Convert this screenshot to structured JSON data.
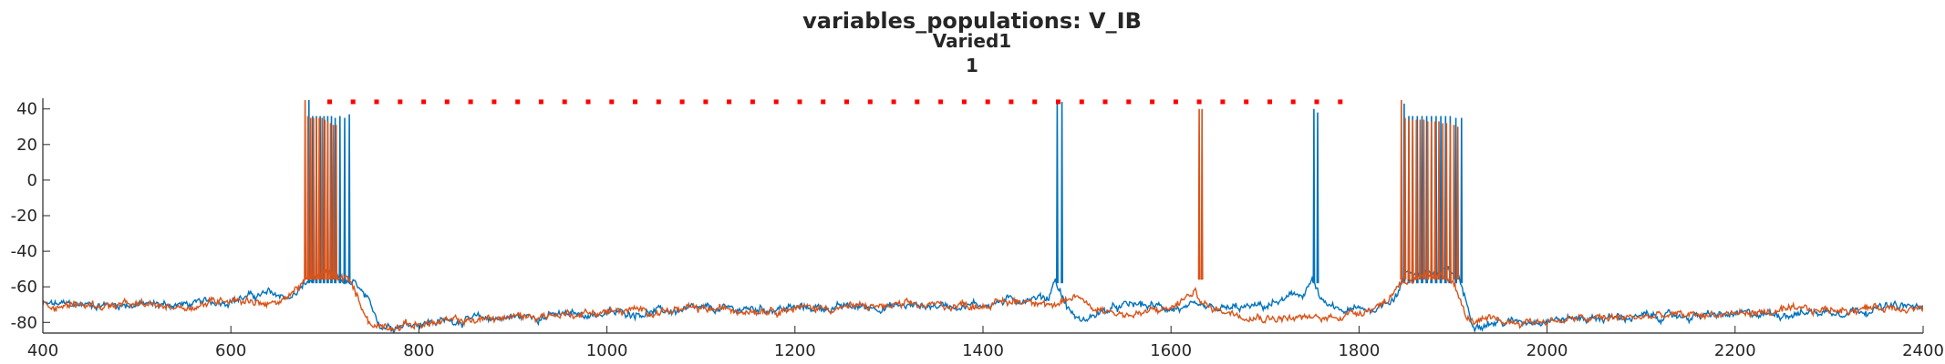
{
  "chart_data": {
    "type": "line",
    "title": "variables_populations: V_IB",
    "subtitle": "Varied1",
    "subtitle2": "1",
    "xlim": [
      400,
      2400
    ],
    "ylim": [
      -86,
      46
    ],
    "xticks": [
      400,
      600,
      800,
      1000,
      1200,
      1400,
      1600,
      1800,
      2000,
      2200,
      2400
    ],
    "yticks": [
      -80,
      -60,
      -40,
      -20,
      0,
      20,
      40
    ],
    "grid": false,
    "series": [
      {
        "color": "#0072BD",
        "baseline": [
          [
            400,
            -70
          ],
          [
            560,
            -70
          ],
          [
            600,
            -67
          ],
          [
            640,
            -64
          ],
          [
            665,
            -66
          ],
          [
            680,
            -58
          ],
          [
            700,
            -53
          ],
          [
            735,
            -60
          ],
          [
            760,
            -82
          ],
          [
            800,
            -80
          ],
          [
            900,
            -77
          ],
          [
            1000,
            -75
          ],
          [
            1100,
            -73
          ],
          [
            1200,
            -72
          ],
          [
            1300,
            -71
          ],
          [
            1400,
            -70
          ],
          [
            1450,
            -66
          ],
          [
            1470,
            -66
          ],
          [
            1476,
            -55
          ],
          [
            1490,
            -72
          ],
          [
            1505,
            -80
          ],
          [
            1520,
            -75
          ],
          [
            1560,
            -70
          ],
          [
            1600,
            -72
          ],
          [
            1650,
            -73
          ],
          [
            1700,
            -71
          ],
          [
            1740,
            -64
          ],
          [
            1750,
            -56
          ],
          [
            1762,
            -70
          ],
          [
            1780,
            -74
          ],
          [
            1820,
            -72
          ],
          [
            1840,
            -64
          ],
          [
            1850,
            -52
          ],
          [
            1905,
            -52
          ],
          [
            1920,
            -80
          ],
          [
            1960,
            -80
          ],
          [
            2000,
            -78
          ],
          [
            2100,
            -77
          ],
          [
            2200,
            -76
          ],
          [
            2300,
            -74
          ],
          [
            2380,
            -71
          ],
          [
            2400,
            -72
          ]
        ],
        "spikes": [
          [
            683,
            45
          ],
          [
            687,
            36
          ],
          [
            691,
            36
          ],
          [
            695,
            36
          ],
          [
            699,
            36
          ],
          [
            703,
            36
          ],
          [
            707,
            36
          ],
          [
            711,
            35
          ],
          [
            716,
            36
          ],
          [
            721,
            35
          ],
          [
            726,
            37
          ],
          [
            1479,
            44
          ],
          [
            1484,
            44
          ],
          [
            1752,
            40
          ],
          [
            1756,
            38
          ],
          [
            1848,
            43
          ],
          [
            1853,
            36
          ],
          [
            1857,
            36
          ],
          [
            1862,
            36
          ],
          [
            1867,
            36
          ],
          [
            1872,
            36
          ],
          [
            1877,
            36
          ],
          [
            1882,
            36
          ],
          [
            1887,
            36
          ],
          [
            1892,
            36
          ],
          [
            1897,
            36
          ],
          [
            1903,
            35
          ],
          [
            1909,
            35
          ]
        ],
        "spike_floor": -58
      },
      {
        "color": "#D95319",
        "baseline": [
          [
            400,
            -70
          ],
          [
            560,
            -71
          ],
          [
            600,
            -66
          ],
          [
            650,
            -70
          ],
          [
            675,
            -58
          ],
          [
            700,
            -53
          ],
          [
            725,
            -56
          ],
          [
            750,
            -82
          ],
          [
            800,
            -81
          ],
          [
            900,
            -77
          ],
          [
            1000,
            -74
          ],
          [
            1100,
            -73
          ],
          [
            1200,
            -72
          ],
          [
            1300,
            -71
          ],
          [
            1400,
            -70
          ],
          [
            1460,
            -67
          ],
          [
            1480,
            -72
          ],
          [
            1500,
            -65
          ],
          [
            1520,
            -72
          ],
          [
            1560,
            -76
          ],
          [
            1600,
            -72
          ],
          [
            1625,
            -63
          ],
          [
            1640,
            -72
          ],
          [
            1700,
            -77
          ],
          [
            1760,
            -78
          ],
          [
            1800,
            -74
          ],
          [
            1830,
            -68
          ],
          [
            1845,
            -56
          ],
          [
            1900,
            -55
          ],
          [
            1915,
            -79
          ],
          [
            1960,
            -80
          ],
          [
            2000,
            -79
          ],
          [
            2100,
            -77
          ],
          [
            2200,
            -75
          ],
          [
            2300,
            -73
          ],
          [
            2380,
            -71
          ],
          [
            2400,
            -72
          ]
        ],
        "spikes": [
          [
            679,
            45
          ],
          [
            682,
            36
          ],
          [
            685,
            35
          ],
          [
            688,
            35
          ],
          [
            691,
            35
          ],
          [
            694,
            35
          ],
          [
            697,
            35
          ],
          [
            700,
            34
          ],
          [
            703,
            33
          ],
          [
            706,
            32
          ],
          [
            709,
            31
          ],
          [
            712,
            31
          ],
          [
            1630,
            40
          ],
          [
            1633,
            40
          ],
          [
            1845,
            45
          ],
          [
            1849,
            35
          ],
          [
            1853,
            34
          ],
          [
            1857,
            34
          ],
          [
            1861,
            34
          ],
          [
            1865,
            34
          ],
          [
            1869,
            34
          ],
          [
            1873,
            33
          ],
          [
            1877,
            33
          ],
          [
            1881,
            33
          ],
          [
            1885,
            33
          ],
          [
            1889,
            32
          ],
          [
            1893,
            32
          ],
          [
            1897,
            32
          ],
          [
            1901,
            31
          ],
          [
            1905,
            30
          ]
        ],
        "spike_floor": -56
      }
    ],
    "markers": {
      "color": "#ff0000",
      "y": 44,
      "x": [
        705,
        730,
        755,
        780,
        805,
        830,
        855,
        880,
        905,
        930,
        955,
        980,
        1005,
        1030,
        1055,
        1080,
        1105,
        1130,
        1155,
        1180,
        1205,
        1230,
        1255,
        1280,
        1305,
        1330,
        1355,
        1380,
        1405,
        1430,
        1455,
        1480,
        1505,
        1530,
        1555,
        1580,
        1605,
        1630,
        1655,
        1680,
        1705,
        1730,
        1755,
        1780
      ]
    }
  }
}
